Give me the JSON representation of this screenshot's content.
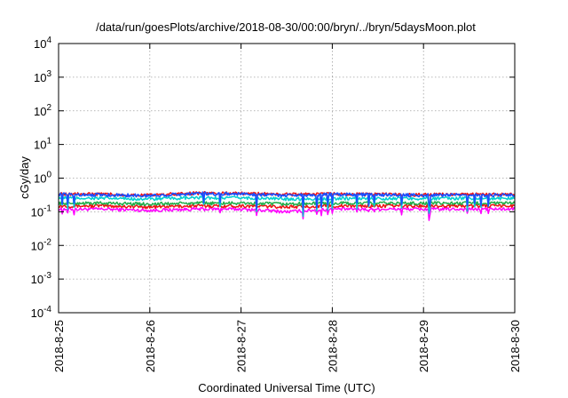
{
  "chart_data": {
    "type": "line",
    "title": "/data/run/goesPlots/archive/2018-08-30/00:00/bryn/../bryn/5daysMoon.plot",
    "xlabel": "Coordinated Universal Time (UTC)",
    "ylabel": "cGy/day",
    "yscale": "log",
    "ylim": [
      0.0001,
      10000
    ],
    "xlim": [
      "2018-8-25",
      "2018-8-30"
    ],
    "x_ticks": [
      "2018-8-25",
      "2018-8-26",
      "2018-8-27",
      "2018-8-28",
      "2018-8-29",
      "2018-8-30"
    ],
    "y_ticks": [
      {
        "value": 0.0001,
        "base": "10",
        "exp": "-4"
      },
      {
        "value": 0.001,
        "base": "10",
        "exp": "-3"
      },
      {
        "value": 0.01,
        "base": "10",
        "exp": "-2"
      },
      {
        "value": 0.1,
        "base": "10",
        "exp": "-1"
      },
      {
        "value": 1,
        "base": "10",
        "exp": "0"
      },
      {
        "value": 10,
        "base": "10",
        "exp": "1"
      },
      {
        "value": 100,
        "base": "10",
        "exp": "2"
      },
      {
        "value": 1000,
        "base": "10",
        "exp": "3"
      },
      {
        "value": 10000,
        "base": "10",
        "exp": "4"
      }
    ],
    "grid": true,
    "legend": "none",
    "x": [
      "2018-8-25",
      "2018-8-25.5",
      "2018-8-26",
      "2018-8-26.5",
      "2018-8-27",
      "2018-8-27.5",
      "2018-8-28",
      "2018-8-28.5",
      "2018-8-29",
      "2018-8-29.5",
      "2018-8-30"
    ],
    "series": [
      {
        "color": "#ff00ff",
        "values": [
          0.12,
          0.12,
          0.11,
          0.12,
          0.12,
          0.1,
          0.12,
          0.12,
          0.12,
          0.12,
          0.12
        ],
        "dips": [
          0.1,
          0.08,
          0.1,
          0.11,
          0.1,
          0.04,
          0.1,
          0.11,
          0.06,
          0.1,
          0.11
        ]
      },
      {
        "color": "#ee1111",
        "values": [
          0.15,
          0.15,
          0.14,
          0.15,
          0.15,
          0.14,
          0.15,
          0.15,
          0.15,
          0.15,
          0.15
        ]
      },
      {
        "color": "#1fae4a",
        "values": [
          0.18,
          0.18,
          0.17,
          0.18,
          0.18,
          0.17,
          0.18,
          0.18,
          0.18,
          0.18,
          0.18
        ]
      },
      {
        "color": "#00cfcf",
        "values": [
          0.26,
          0.25,
          0.24,
          0.26,
          0.26,
          0.24,
          0.25,
          0.25,
          0.25,
          0.25,
          0.25
        ],
        "dips": [
          0.14,
          0.1,
          0.13,
          0.14,
          0.13,
          0.06,
          0.13,
          0.14,
          0.1,
          0.13,
          0.14
        ]
      },
      {
        "color": "#ee1111",
        "values": [
          0.34,
          0.33,
          0.31,
          0.36,
          0.35,
          0.33,
          0.34,
          0.33,
          0.32,
          0.33,
          0.32
        ]
      },
      {
        "color": "#1a4fff",
        "values": [
          0.33,
          0.32,
          0.3,
          0.35,
          0.34,
          0.31,
          0.33,
          0.32,
          0.31,
          0.32,
          0.31
        ],
        "dips": [
          0.18,
          0.14,
          0.17,
          0.2,
          0.17,
          0.1,
          0.18,
          0.19,
          0.14,
          0.18,
          0.19
        ]
      }
    ]
  }
}
